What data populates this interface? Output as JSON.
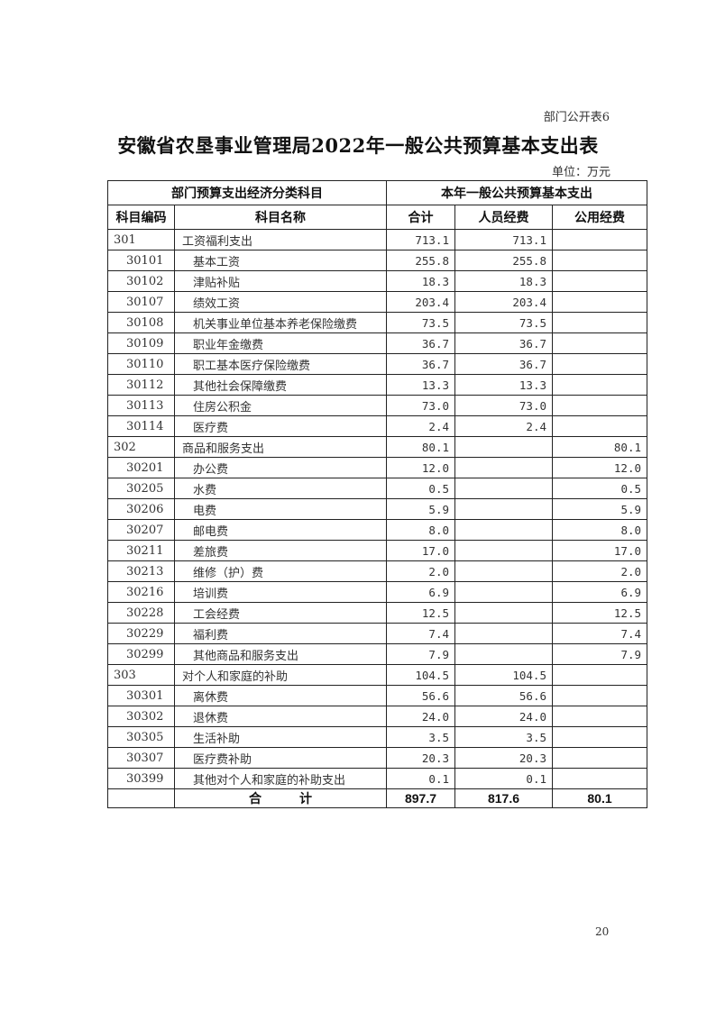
{
  "form_number": "部门公开表6",
  "title": "安徽省农垦事业管理局2022年一般公共预算基本支出表",
  "unit": "单位：万元",
  "header": {
    "group_left": "部门预算支出经济分类科目",
    "group_right": "本年一般公共预算基本支出",
    "columns": [
      "科目编码",
      "科目名称",
      "合计",
      "人员经费",
      "公用经费"
    ]
  },
  "rows": [
    {
      "code": "301",
      "name": "工资福利支出",
      "total": "713.1",
      "personnel": "713.1",
      "public": "",
      "level": 1
    },
    {
      "code": "30101",
      "name": "基本工资",
      "total": "255.8",
      "personnel": "255.8",
      "public": "",
      "level": 2
    },
    {
      "code": "30102",
      "name": "津贴补贴",
      "total": "18.3",
      "personnel": "18.3",
      "public": "",
      "level": 2
    },
    {
      "code": "30107",
      "name": "绩效工资",
      "total": "203.4",
      "personnel": "203.4",
      "public": "",
      "level": 2
    },
    {
      "code": "30108",
      "name": "机关事业单位基本养老保险缴费",
      "total": "73.5",
      "personnel": "73.5",
      "public": "",
      "level": 2
    },
    {
      "code": "30109",
      "name": "职业年金缴费",
      "total": "36.7",
      "personnel": "36.7",
      "public": "",
      "level": 2
    },
    {
      "code": "30110",
      "name": "职工基本医疗保险缴费",
      "total": "36.7",
      "personnel": "36.7",
      "public": "",
      "level": 2
    },
    {
      "code": "30112",
      "name": "其他社会保障缴费",
      "total": "13.3",
      "personnel": "13.3",
      "public": "",
      "level": 2
    },
    {
      "code": "30113",
      "name": "住房公积金",
      "total": "73.0",
      "personnel": "73.0",
      "public": "",
      "level": 2
    },
    {
      "code": "30114",
      "name": "医疗费",
      "total": "2.4",
      "personnel": "2.4",
      "public": "",
      "level": 2
    },
    {
      "code": "302",
      "name": "商品和服务支出",
      "total": "80.1",
      "personnel": "",
      "public": "80.1",
      "level": 1
    },
    {
      "code": "30201",
      "name": "办公费",
      "total": "12.0",
      "personnel": "",
      "public": "12.0",
      "level": 2
    },
    {
      "code": "30205",
      "name": "水费",
      "total": "0.5",
      "personnel": "",
      "public": "0.5",
      "level": 2
    },
    {
      "code": "30206",
      "name": "电费",
      "total": "5.9",
      "personnel": "",
      "public": "5.9",
      "level": 2
    },
    {
      "code": "30207",
      "name": "邮电费",
      "total": "8.0",
      "personnel": "",
      "public": "8.0",
      "level": 2
    },
    {
      "code": "30211",
      "name": "差旅费",
      "total": "17.0",
      "personnel": "",
      "public": "17.0",
      "level": 2
    },
    {
      "code": "30213",
      "name": "维修（护）费",
      "total": "2.0",
      "personnel": "",
      "public": "2.0",
      "level": 2
    },
    {
      "code": "30216",
      "name": "培训费",
      "total": "6.9",
      "personnel": "",
      "public": "6.9",
      "level": 2
    },
    {
      "code": "30228",
      "name": "工会经费",
      "total": "12.5",
      "personnel": "",
      "public": "12.5",
      "level": 2
    },
    {
      "code": "30229",
      "name": "福利费",
      "total": "7.4",
      "personnel": "",
      "public": "7.4",
      "level": 2
    },
    {
      "code": "30299",
      "name": "其他商品和服务支出",
      "total": "7.9",
      "personnel": "",
      "public": "7.9",
      "level": 2
    },
    {
      "code": "303",
      "name": "对个人和家庭的补助",
      "total": "104.5",
      "personnel": "104.5",
      "public": "",
      "level": 1
    },
    {
      "code": "30301",
      "name": "离休费",
      "total": "56.6",
      "personnel": "56.6",
      "public": "",
      "level": 2
    },
    {
      "code": "30302",
      "name": "退休费",
      "total": "24.0",
      "personnel": "24.0",
      "public": "",
      "level": 2
    },
    {
      "code": "30305",
      "name": "生活补助",
      "total": "3.5",
      "personnel": "3.5",
      "public": "",
      "level": 2
    },
    {
      "code": "30307",
      "name": "医疗费补助",
      "total": "20.3",
      "personnel": "20.3",
      "public": "",
      "level": 2
    },
    {
      "code": "30399",
      "name": "其他对个人和家庭的补助支出",
      "total": "0.1",
      "personnel": "0.1",
      "public": "",
      "level": 2
    }
  ],
  "total_row": {
    "label": "合　　　计",
    "total": "897.7",
    "personnel": "817.6",
    "public": "80.1"
  },
  "page_number": "20"
}
